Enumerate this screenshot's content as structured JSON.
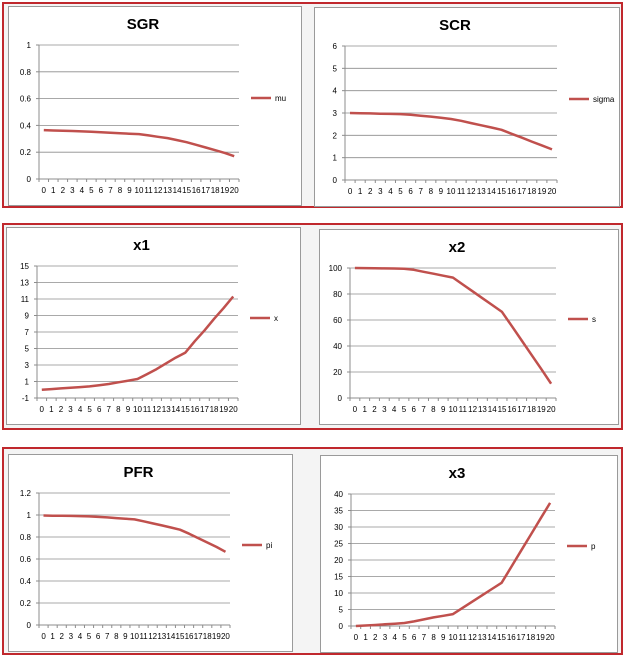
{
  "line_color": "#c0504d",
  "chart_data": [
    {
      "type": "line",
      "title": "SGR",
      "x": [
        0,
        1,
        2,
        3,
        4,
        5,
        6,
        7,
        8,
        9,
        10,
        11,
        12,
        13,
        14,
        15,
        16,
        17,
        18,
        19,
        20
      ],
      "series": [
        {
          "name": "mu",
          "values": [
            0.365,
            0.362,
            0.36,
            0.358,
            0.355,
            0.352,
            0.349,
            0.345,
            0.341,
            0.338,
            0.335,
            0.325,
            0.315,
            0.305,
            0.29,
            0.275,
            0.255,
            0.235,
            0.215,
            0.195,
            0.17
          ]
        }
      ],
      "yticks": [
        "0",
        "0.2",
        "0.4",
        "0.6",
        "0.8",
        "1"
      ],
      "ylim": [
        0,
        1
      ],
      "grid": true,
      "legend": "right"
    },
    {
      "type": "line",
      "title": "SCR",
      "x": [
        0,
        1,
        2,
        3,
        4,
        5,
        6,
        7,
        8,
        9,
        10,
        11,
        12,
        13,
        14,
        15,
        16,
        17,
        18,
        19,
        20
      ],
      "series": [
        {
          "name": "sigma",
          "values": [
            3.0,
            2.99,
            2.98,
            2.97,
            2.96,
            2.95,
            2.92,
            2.88,
            2.84,
            2.79,
            2.73,
            2.65,
            2.55,
            2.45,
            2.35,
            2.25,
            2.07,
            1.9,
            1.72,
            1.55,
            1.37
          ]
        }
      ],
      "yticks": [
        "0",
        "1",
        "2",
        "3",
        "4",
        "5",
        "6"
      ],
      "ylim": [
        0,
        6
      ],
      "grid": true,
      "legend": "right"
    },
    {
      "type": "line",
      "title": "x1",
      "x": [
        0,
        1,
        2,
        3,
        4,
        5,
        6,
        7,
        8,
        9,
        10,
        11,
        12,
        13,
        14,
        15,
        16,
        17,
        18,
        19,
        20
      ],
      "series": [
        {
          "name": "x",
          "values": [
            0,
            0.08,
            0.16,
            0.24,
            0.32,
            0.4,
            0.55,
            0.7,
            0.9,
            1.1,
            1.3,
            1.9,
            2.5,
            3.2,
            3.9,
            4.5,
            5.9,
            7.2,
            8.6,
            9.9,
            11.3
          ]
        }
      ],
      "yticks": [
        "-1",
        "1",
        "3",
        "5",
        "7",
        "9",
        "11",
        "13",
        "15"
      ],
      "ylim": [
        -1,
        15
      ],
      "grid": true,
      "legend": "right"
    },
    {
      "type": "line",
      "title": "x2",
      "x": [
        0,
        1,
        2,
        3,
        4,
        5,
        6,
        7,
        8,
        9,
        10,
        11,
        12,
        13,
        14,
        15,
        16,
        17,
        18,
        19,
        20
      ],
      "series": [
        {
          "name": "s",
          "values": [
            100,
            99.9,
            99.8,
            99.7,
            99.6,
            99.5,
            98.6,
            97.1,
            95.6,
            94.1,
            92.6,
            87.3,
            82.1,
            76.8,
            71.5,
            66.2,
            55.2,
            44.2,
            33.2,
            22.2,
            11
          ]
        }
      ],
      "yticks": [
        "0",
        "20",
        "40",
        "60",
        "80",
        "100"
      ],
      "ylim": [
        0,
        100
      ],
      "grid": true,
      "legend": "right"
    },
    {
      "type": "line",
      "title": "PFR",
      "x": [
        0,
        1,
        2,
        3,
        4,
        5,
        6,
        7,
        8,
        9,
        10,
        11,
        12,
        13,
        14,
        15,
        16,
        17,
        18,
        19,
        20
      ],
      "series": [
        {
          "name": "pi",
          "values": [
            0.995,
            0.994,
            0.993,
            0.992,
            0.99,
            0.987,
            0.983,
            0.978,
            0.972,
            0.966,
            0.96,
            0.943,
            0.924,
            0.905,
            0.886,
            0.866,
            0.83,
            0.79,
            0.75,
            0.71,
            0.665
          ]
        }
      ],
      "yticks": [
        "0",
        "0.2",
        "0.4",
        "0.6",
        "0.8",
        "1",
        "1.2"
      ],
      "ylim": [
        0,
        1.2
      ],
      "grid": true,
      "legend": "right"
    },
    {
      "type": "line",
      "title": "x3",
      "x": [
        0,
        1,
        2,
        3,
        4,
        5,
        6,
        7,
        8,
        9,
        10,
        11,
        12,
        13,
        14,
        15,
        16,
        17,
        18,
        19,
        20
      ],
      "series": [
        {
          "name": "p",
          "values": [
            0,
            0.15,
            0.3,
            0.5,
            0.7,
            0.9,
            1.4,
            2.0,
            2.6,
            3.1,
            3.6,
            5.5,
            7.4,
            9.3,
            11.2,
            13.1,
            17.9,
            22.8,
            27.6,
            32.5,
            37.3
          ]
        }
      ],
      "yticks": [
        "0",
        "5",
        "10",
        "15",
        "20",
        "25",
        "30",
        "35",
        "40"
      ],
      "ylim": [
        0,
        40
      ],
      "grid": true,
      "legend": "right"
    }
  ]
}
